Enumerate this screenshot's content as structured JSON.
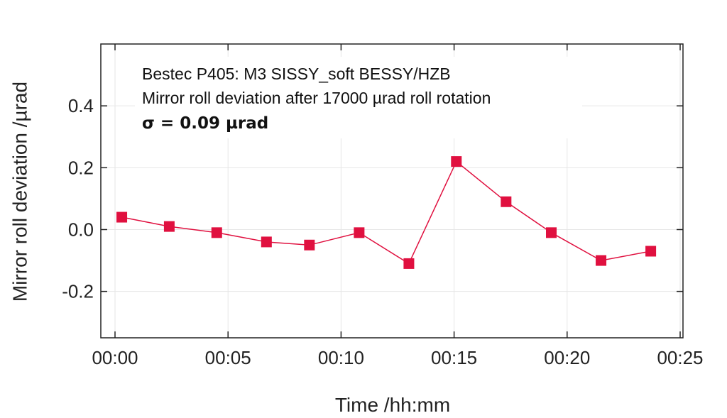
{
  "chart_data": {
    "type": "line",
    "title": "",
    "xlabel": "Time /hh:mm",
    "ylabel": "Mirror roll deviation /µrad",
    "annotations": [
      "Bestec P405: M3 SISSY_soft BESSY/HZB",
      "Mirror roll deviation after 17000 µrad roll rotation",
      "σ = 0.09 µrad"
    ],
    "x_ticks": [
      "00:00",
      "00:05",
      "00:10",
      "00:15",
      "00:20",
      "00:25"
    ],
    "y_ticks": [
      "0.4",
      "0.2",
      "0.0",
      "-0.2"
    ],
    "xlim_minutes": [
      0,
      25
    ],
    "ylim": [
      -0.35,
      0.6
    ],
    "grid": true,
    "series": [
      {
        "color": "#e0103f",
        "x_minutes": [
          0.3,
          2.4,
          4.5,
          6.7,
          8.6,
          10.8,
          13.0,
          15.1,
          17.3,
          19.3,
          21.5,
          23.7
        ],
        "values": [
          0.04,
          0.01,
          -0.01,
          -0.04,
          -0.05,
          -0.01,
          -0.11,
          0.22,
          0.09,
          -0.01,
          -0.1,
          -0.07
        ]
      }
    ]
  }
}
